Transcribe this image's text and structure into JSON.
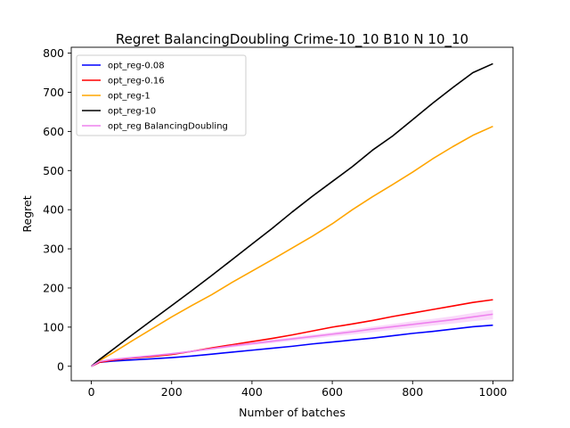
{
  "chart_data": {
    "type": "line",
    "title": "Regret BalancingDoubling Crime-10_10 B10 N 10_10",
    "xlabel": "Number of batches",
    "ylabel": "Regret",
    "xlim": [
      -50,
      1050
    ],
    "ylim": [
      -37,
      815
    ],
    "xticks": [
      0,
      200,
      400,
      600,
      800,
      1000
    ],
    "yticks": [
      0,
      100,
      200,
      300,
      400,
      500,
      600,
      700,
      800
    ],
    "grid": false,
    "legend_position": "top-left",
    "series": [
      {
        "name": "opt_reg-0.08",
        "color": "#0000ff",
        "x": [
          0,
          20,
          50,
          100,
          150,
          200,
          250,
          300,
          350,
          400,
          450,
          500,
          550,
          600,
          650,
          700,
          750,
          800,
          850,
          900,
          950,
          1000
        ],
        "y": [
          0,
          10,
          13,
          16,
          19,
          22,
          26,
          31,
          36,
          41,
          46,
          51,
          57,
          62,
          67,
          72,
          78,
          84,
          89,
          95,
          101,
          105
        ]
      },
      {
        "name": "opt_reg-0.16",
        "color": "#ff0000",
        "x": [
          0,
          20,
          50,
          100,
          150,
          200,
          250,
          300,
          350,
          400,
          450,
          500,
          550,
          600,
          650,
          700,
          750,
          800,
          850,
          900,
          950,
          1000
        ],
        "y": [
          0,
          10,
          15,
          21,
          25,
          30,
          38,
          47,
          55,
          63,
          71,
          80,
          90,
          100,
          108,
          117,
          127,
          136,
          145,
          154,
          163,
          170
        ]
      },
      {
        "name": "opt_reg-1",
        "color": "#ffa500",
        "x": [
          0,
          20,
          50,
          100,
          150,
          200,
          250,
          300,
          350,
          400,
          450,
          500,
          550,
          600,
          650,
          700,
          750,
          800,
          850,
          900,
          950,
          1000
        ],
        "y": [
          0,
          14,
          32,
          64,
          95,
          126,
          155,
          183,
          214,
          243,
          272,
          302,
          332,
          364,
          400,
          433,
          464,
          496,
          530,
          561,
          590,
          613
        ]
      },
      {
        "name": "opt_reg-10",
        "color": "#000000",
        "x": [
          0,
          20,
          50,
          100,
          150,
          200,
          250,
          300,
          350,
          400,
          450,
          500,
          550,
          600,
          650,
          700,
          750,
          800,
          850,
          900,
          950,
          1000
        ],
        "y": [
          0,
          17,
          40,
          79,
          117,
          155,
          193,
          232,
          272,
          312,
          352,
          394,
          434,
          472,
          510,
          552,
          588,
          630,
          672,
          712,
          750,
          773
        ]
      },
      {
        "name": "opt_reg BalancingDoubling",
        "color": "#ee82ee",
        "x": [
          0,
          20,
          50,
          100,
          150,
          200,
          250,
          300,
          350,
          400,
          450,
          500,
          550,
          600,
          650,
          700,
          750,
          800,
          850,
          900,
          950,
          1000
        ],
        "y": [
          0,
          12,
          17,
          22,
          27,
          32,
          38,
          45,
          52,
          58,
          64,
          70,
          76,
          82,
          88,
          95,
          101,
          107,
          113,
          119,
          126,
          133
        ],
        "band_lower": [
          0,
          11,
          16,
          21,
          26,
          30,
          36,
          42,
          48,
          54,
          59,
          65,
          70,
          76,
          81,
          87,
          93,
          98,
          104,
          109,
          115,
          120
        ],
        "band_upper": [
          0,
          13,
          18,
          23,
          28,
          34,
          40,
          47,
          55,
          61,
          68,
          74,
          81,
          87,
          94,
          101,
          108,
          115,
          121,
          128,
          136,
          144
        ]
      }
    ]
  }
}
